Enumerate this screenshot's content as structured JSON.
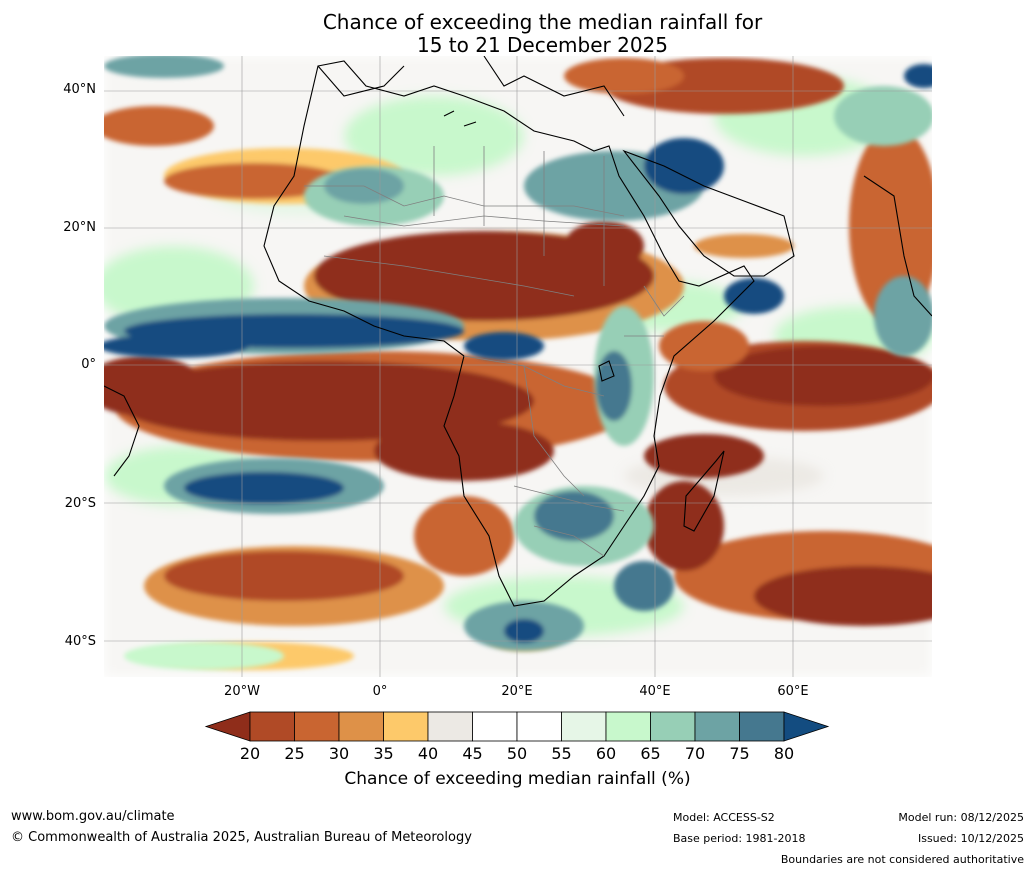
{
  "title": {
    "line1": "Chance of exceeding the median rainfall for",
    "line2": "15 to 21 December 2025"
  },
  "axes": {
    "lat_labels": [
      "40°N",
      "20°N",
      "0°",
      "20°S",
      "40°S"
    ],
    "lon_labels": [
      "20°W",
      "0°",
      "20°E",
      "40°E",
      "60°E"
    ]
  },
  "colorbar": {
    "ticks": [
      "20",
      "25",
      "30",
      "35",
      "40",
      "45",
      "50",
      "55",
      "60",
      "65",
      "70",
      "75",
      "80"
    ],
    "colors": [
      "#8f2d1a",
      "#b04a26",
      "#c96531",
      "#de9148",
      "#fdc96a",
      "#ece9e4",
      "#ffffff",
      "#ffffff",
      "#e6f6e7",
      "#c8f8cc",
      "#97cfb6",
      "#6da3a4",
      "#45788f",
      "#134c80"
    ],
    "label": "Chance of exceeding median rainfall (%)"
  },
  "legend_colors": {
    "land_line": "#000000",
    "border_line": "#808080",
    "gridline": "#9a9a9a"
  },
  "footer": {
    "website": "www.bom.gov.au/climate",
    "copyright": "© Commonwealth of Australia 2025, Australian Bureau of Meteorology",
    "model": "Model: ACCESS-S2",
    "base_period": "Base period: 1981-2018",
    "model_run": "Model run: 08/12/2025",
    "issued": "Issued: 10/12/2025",
    "disclaimer": "Boundaries are not considered authoritative"
  }
}
